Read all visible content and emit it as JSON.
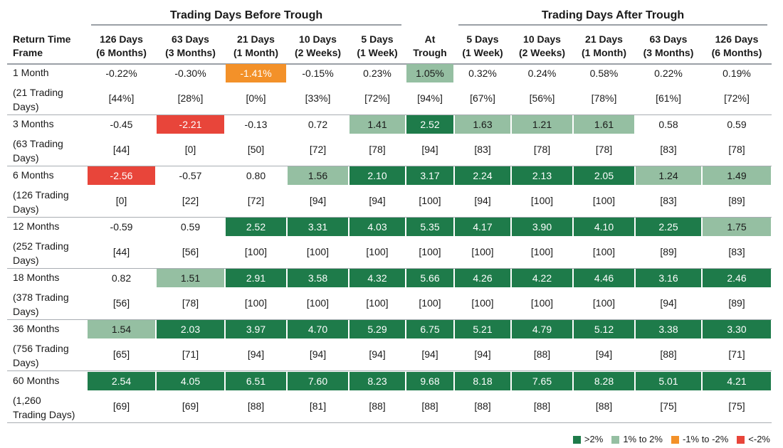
{
  "chart_data": {
    "type": "table",
    "title": "",
    "group_headers": [
      {
        "label": "Trading Days Before Trough",
        "span": [
          1,
          5
        ]
      },
      {
        "label": "Trading Days After Trough",
        "span": [
          7,
          11
        ]
      }
    ],
    "columns": [
      {
        "line1": "Return Time",
        "line2": "Frame"
      },
      {
        "line1": "126 Days",
        "line2": "(6 Months)"
      },
      {
        "line1": "63 Days",
        "line2": "(3 Months)"
      },
      {
        "line1": "21 Days",
        "line2": "(1 Month)"
      },
      {
        "line1": "10 Days",
        "line2": "(2 Weeks)"
      },
      {
        "line1": "5 Days",
        "line2": "(1 Week)"
      },
      {
        "line1": "At",
        "line2": "Trough"
      },
      {
        "line1": "5 Days",
        "line2": "(1 Week)"
      },
      {
        "line1": "10 Days",
        "line2": "(2 Weeks)"
      },
      {
        "line1": "21 Days",
        "line2": "(1 Month)"
      },
      {
        "line1": "63 Days",
        "line2": "(3 Months)"
      },
      {
        "line1": "126 Days",
        "line2": "(6 Months)"
      }
    ],
    "rows": [
      {
        "label": "1 Month",
        "sublabel": [
          "(21 Trading",
          "Days)"
        ],
        "values": [
          "-0.22%",
          "-0.30%",
          "-1.41%",
          "-0.15%",
          "0.23%",
          "1.05%",
          "0.32%",
          "0.24%",
          "0.58%",
          "0.22%",
          "0.19%"
        ],
        "percent_positive": [
          "[44%]",
          "[28%]",
          "[0%]",
          "[33%]",
          "[72%]",
          "[94%]",
          "[67%]",
          "[56%]",
          "[78%]",
          "[61%]",
          "[72%]"
        ]
      },
      {
        "label": "3 Months",
        "sublabel": [
          "(63 Trading",
          "Days)"
        ],
        "values": [
          "-0.45",
          "-2.21",
          "-0.13",
          "0.72",
          "1.41",
          "2.52",
          "1.63",
          "1.21",
          "1.61",
          "0.58",
          "0.59"
        ],
        "percent_positive": [
          "[44]",
          "[0]",
          "[50]",
          "[72]",
          "[78]",
          "[94]",
          "[83]",
          "[78]",
          "[78]",
          "[83]",
          "[78]"
        ]
      },
      {
        "label": "6 Months",
        "sublabel": [
          "(126 Trading",
          "Days)"
        ],
        "values": [
          "-2.56",
          "-0.57",
          "0.80",
          "1.56",
          "2.10",
          "3.17",
          "2.24",
          "2.13",
          "2.05",
          "1.24",
          "1.49"
        ],
        "percent_positive": [
          "[0]",
          "[22]",
          "[72]",
          "[94]",
          "[94]",
          "[100]",
          "[94]",
          "[100]",
          "[100]",
          "[83]",
          "[89]"
        ]
      },
      {
        "label": "12 Months",
        "sublabel": [
          "(252 Trading",
          "Days)"
        ],
        "values": [
          "-0.59",
          "0.59",
          "2.52",
          "3.31",
          "4.03",
          "5.35",
          "4.17",
          "3.90",
          "4.10",
          "2.25",
          "1.75"
        ],
        "percent_positive": [
          "[44]",
          "[56]",
          "[100]",
          "[100]",
          "[100]",
          "[100]",
          "[100]",
          "[100]",
          "[100]",
          "[89]",
          "[83]"
        ]
      },
      {
        "label": "18 Months",
        "sublabel": [
          "(378 Trading",
          "Days)"
        ],
        "values": [
          "0.82",
          "1.51",
          "2.91",
          "3.58",
          "4.32",
          "5.66",
          "4.26",
          "4.22",
          "4.46",
          "3.16",
          "2.46"
        ],
        "percent_positive": [
          "[56]",
          "[78]",
          "[100]",
          "[100]",
          "[100]",
          "[100]",
          "[100]",
          "[100]",
          "[100]",
          "[94]",
          "[89]"
        ]
      },
      {
        "label": "36 Months",
        "sublabel": [
          "(756 Trading",
          "Days)"
        ],
        "values": [
          "1.54",
          "2.03",
          "3.97",
          "4.70",
          "5.29",
          "6.75",
          "5.21",
          "4.79",
          "5.12",
          "3.38",
          "3.30"
        ],
        "percent_positive": [
          "[65]",
          "[71]",
          "[94]",
          "[94]",
          "[94]",
          "[94]",
          "[94]",
          "[88]",
          "[94]",
          "[88]",
          "[71]"
        ]
      },
      {
        "label": "60 Months",
        "sublabel": [
          "(1,260",
          "Trading Days)"
        ],
        "values": [
          "2.54",
          "4.05",
          "6.51",
          "7.60",
          "8.23",
          "9.68",
          "8.18",
          "7.65",
          "8.28",
          "5.01",
          "4.21"
        ],
        "percent_positive": [
          "[69]",
          "[69]",
          "[88]",
          "[81]",
          "[88]",
          "[88]",
          "[88]",
          "[88]",
          "[88]",
          "[75]",
          "[75]"
        ]
      }
    ],
    "legend": [
      {
        "label": ">2%",
        "color": "#1e7b4a"
      },
      {
        "label": "1% to 2%",
        "color": "#95bfa2"
      },
      {
        "label": "-1% to -2%",
        "color": "#f39129"
      },
      {
        "label": "<-2%",
        "color": "#e8453a"
      }
    ],
    "colors": {
      "dark_green": "#1e7b4a",
      "light_green": "#95bfa2",
      "orange": "#f39129",
      "red": "#e8453a"
    },
    "legend_placement": "bottom-right"
  }
}
